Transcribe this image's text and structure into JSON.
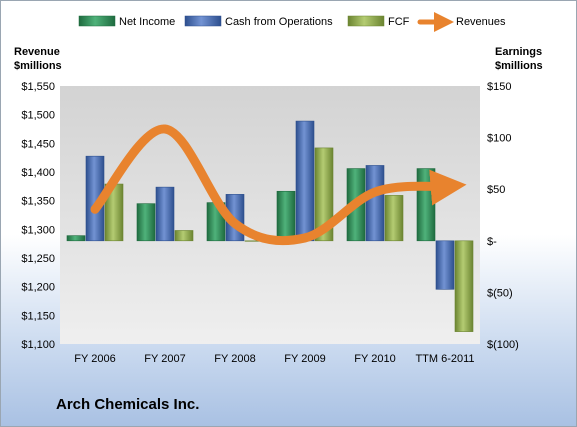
{
  "chart_data": {
    "type": "bar",
    "title": "Arch Chemicals Inc.",
    "categories": [
      "FY 2006",
      "FY 2007",
      "FY 2008",
      "FY 2009",
      "FY 2010",
      "TTM 6-2011"
    ],
    "series": [
      {
        "name": "Net Income",
        "axis": "right",
        "values": [
          5,
          36,
          37,
          48,
          70,
          70
        ],
        "color": "#2e8b57"
      },
      {
        "name": "Cash from Operations",
        "axis": "right",
        "values": [
          82,
          52,
          45,
          116,
          73,
          -47
        ],
        "color": "#4a6fb5"
      },
      {
        "name": "FCF",
        "axis": "right",
        "values": [
          55,
          10,
          0,
          90,
          44,
          -88
        ],
        "color": "#8faa4a"
      },
      {
        "name": "Revenues",
        "type": "line",
        "axis": "left",
        "values": [
          1335,
          1475,
          1310,
          1285,
          1365,
          1375
        ],
        "color": "#e8832e"
      }
    ],
    "left_axis": {
      "label_line1": "Revenue",
      "label_line2": "$millions",
      "ylim": [
        1100,
        1550
      ],
      "ticks": [
        1100,
        1150,
        1200,
        1250,
        1300,
        1350,
        1400,
        1450,
        1500,
        1550
      ],
      "tick_labels": [
        "$1,100",
        "$1,150",
        "$1,200",
        "$1,250",
        "$1,300",
        "$1,350",
        "$1,400",
        "$1,450",
        "$1,500",
        "$1,550"
      ]
    },
    "right_axis": {
      "label_line1": "Earnings",
      "label_line2": "$millions",
      "ylim": [
        -100,
        150
      ],
      "ticks": [
        -100,
        -50,
        0,
        50,
        100,
        150
      ],
      "tick_labels": [
        "$(100)",
        "$(50)",
        "$-",
        "$50",
        "$100",
        "$150"
      ]
    },
    "legend_position": "top",
    "grid": false
  }
}
